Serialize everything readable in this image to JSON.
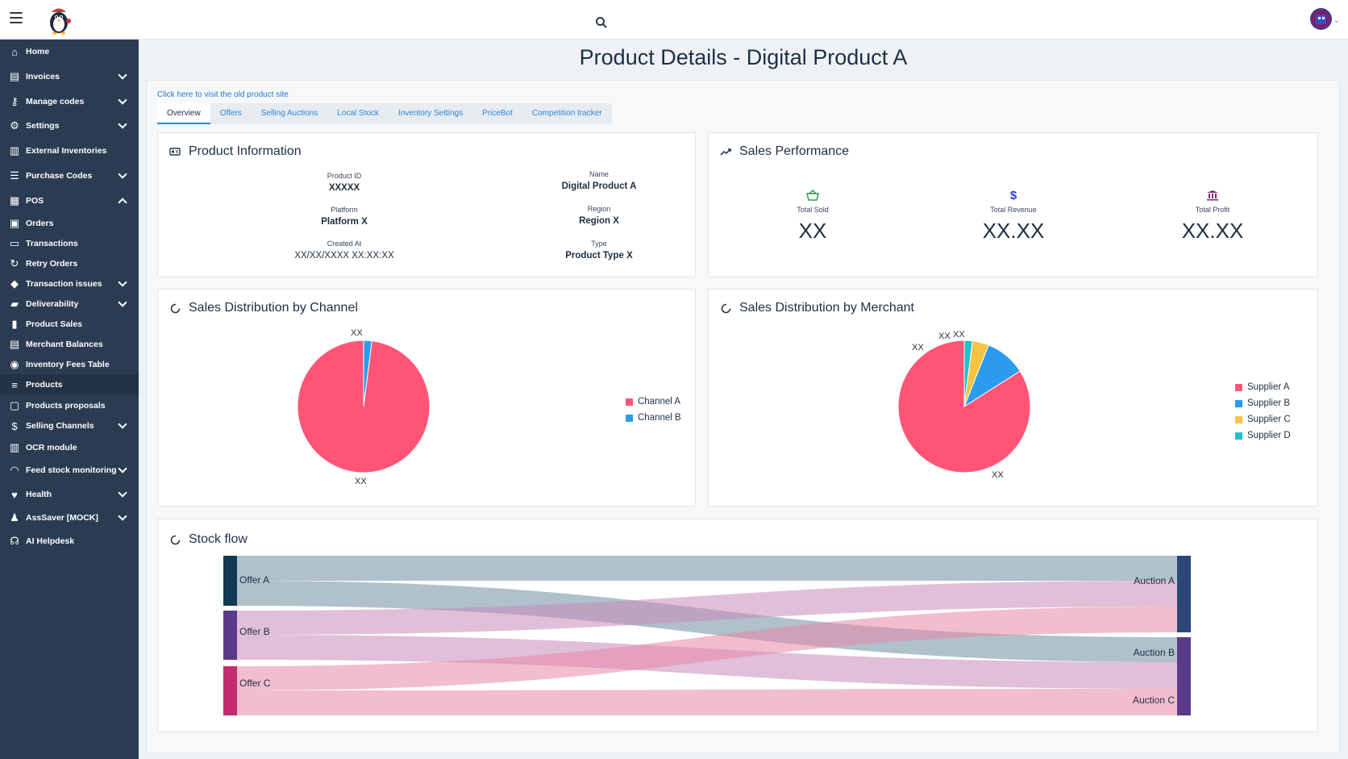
{
  "colors": {
    "sidebar_bg": "#2b3c52",
    "accent": "#2a88dc",
    "pie_red": "#ff5476",
    "pie_blue": "#2b9ced",
    "pie_yellow": "#f6c343",
    "pie_teal": "#23c2c9"
  },
  "header": {
    "logo_icon": "penguin-logo",
    "search_icon": "search-icon",
    "avatar_icon": "user-avatar"
  },
  "sidebar": {
    "items": [
      {
        "label": "Home",
        "icon": "home-icon",
        "chevron": ""
      },
      {
        "label": "Invoices",
        "icon": "invoice-icon",
        "chevron": "down"
      },
      {
        "label": "Manage codes",
        "icon": "key-icon",
        "chevron": "down"
      },
      {
        "label": "Settings",
        "icon": "gear-icon",
        "chevron": "down"
      },
      {
        "label": "External Inventories",
        "icon": "factory-icon",
        "chevron": ""
      },
      {
        "label": "Purchase Codes",
        "icon": "list-check-icon",
        "chevron": "down"
      },
      {
        "label": "POS",
        "icon": "cash-register-icon",
        "chevron": "up"
      },
      {
        "label": "Orders",
        "icon": "orders-icon",
        "chevron": ""
      },
      {
        "label": "Transactions",
        "icon": "transactions-icon",
        "chevron": ""
      },
      {
        "label": "Retry Orders",
        "icon": "retry-icon",
        "chevron": ""
      },
      {
        "label": "Transaction issues",
        "icon": "warning-diamond-icon",
        "chevron": "down"
      },
      {
        "label": "Deliverability",
        "icon": "truck-icon",
        "chevron": "down"
      },
      {
        "label": "Product Sales",
        "icon": "bar-chart-icon",
        "chevron": ""
      },
      {
        "label": "Merchant Balances",
        "icon": "balance-icon",
        "chevron": ""
      },
      {
        "label": "Inventory Fees Table",
        "icon": "money-icon",
        "chevron": ""
      },
      {
        "label": "Products",
        "icon": "list-icon",
        "chevron": ""
      },
      {
        "label": "Products proposals",
        "icon": "proposal-icon",
        "chevron": ""
      },
      {
        "label": "Selling Channels",
        "icon": "dollar-icon",
        "chevron": "down"
      },
      {
        "label": "OCR module",
        "icon": "factory-icon",
        "chevron": ""
      },
      {
        "label": "Feed stock monitoring",
        "icon": "rss-icon",
        "chevron": "down"
      },
      {
        "label": "Health",
        "icon": "heartbeat-icon",
        "chevron": "down"
      },
      {
        "label": "AssSaver [MOCK]",
        "icon": "user-tie-icon",
        "chevron": "down"
      },
      {
        "label": "AI Helpdesk",
        "icon": "headset-icon",
        "chevron": ""
      }
    ]
  },
  "main": {
    "title": "Product Details - Digital Product A",
    "old_link": "Click here to visit the old product site",
    "tabs": [
      "Overview",
      "Offers",
      "Selling Auctions",
      "Local Stock",
      "Inventory Settings",
      "PriceBot",
      "Competition tracker"
    ]
  },
  "product_info": {
    "title": "Product Information",
    "product_id_label": "Product ID",
    "product_id": "XXXXX",
    "name_label": "Name",
    "name": "Digital Product A",
    "platform_label": "Platform",
    "platform": "Platform X",
    "region_label": "Region",
    "region": "Region X",
    "created_label": "Created At",
    "created": "XX/XX/XXXX XX:XX:XX",
    "type_label": "Type",
    "type": "Product Type X"
  },
  "sales_performance": {
    "title": "Sales Performance",
    "total_sold_label": "Total Sold",
    "total_sold": "XX",
    "total_revenue_label": "Total Revenue",
    "total_revenue": "XX.XX",
    "total_profit_label": "Total Profit",
    "total_profit": "XX.XX"
  },
  "chart_data": [
    {
      "type": "pie",
      "title": "Sales Distribution by Channel",
      "categories": [
        "Channel A",
        "Channel B"
      ],
      "values": [
        98,
        2
      ],
      "data_labels": [
        "XX",
        "XX"
      ],
      "colors": [
        "#ff5476",
        "#2b9ced"
      ],
      "legend": "right"
    },
    {
      "type": "pie",
      "title": "Sales Distribution by Merchant",
      "categories": [
        "Supplier A",
        "Supplier B",
        "Supplier C",
        "Supplier D"
      ],
      "values": [
        84,
        10,
        4,
        2
      ],
      "data_labels": [
        "XX",
        "XX",
        "XX",
        "XX"
      ],
      "colors": [
        "#ff5476",
        "#2b9ced",
        "#f6c343",
        "#23c2c9"
      ],
      "legend": "right"
    },
    {
      "type": "sankey",
      "title": "Stock flow",
      "sources": [
        "Offer A",
        "Offer B",
        "Offer C"
      ],
      "targets": [
        "Auction A",
        "Auction B",
        "Auction C"
      ],
      "links": [
        {
          "source": "Offer A",
          "target": "Auction A",
          "value": 1
        },
        {
          "source": "Offer A",
          "target": "Auction B",
          "value": 1
        },
        {
          "source": "Offer B",
          "target": "Auction A",
          "value": 1
        },
        {
          "source": "Offer B",
          "target": "Auction C",
          "value": 1
        },
        {
          "source": "Offer C",
          "target": "Auction A",
          "value": 1
        },
        {
          "source": "Offer C",
          "target": "Auction C",
          "value": 1
        }
      ]
    }
  ],
  "stock_flow": {
    "title": "Stock flow"
  },
  "channel_chart": {
    "title": "Sales Distribution by Channel"
  },
  "merchant_chart": {
    "title": "Sales Distribution by Merchant"
  }
}
